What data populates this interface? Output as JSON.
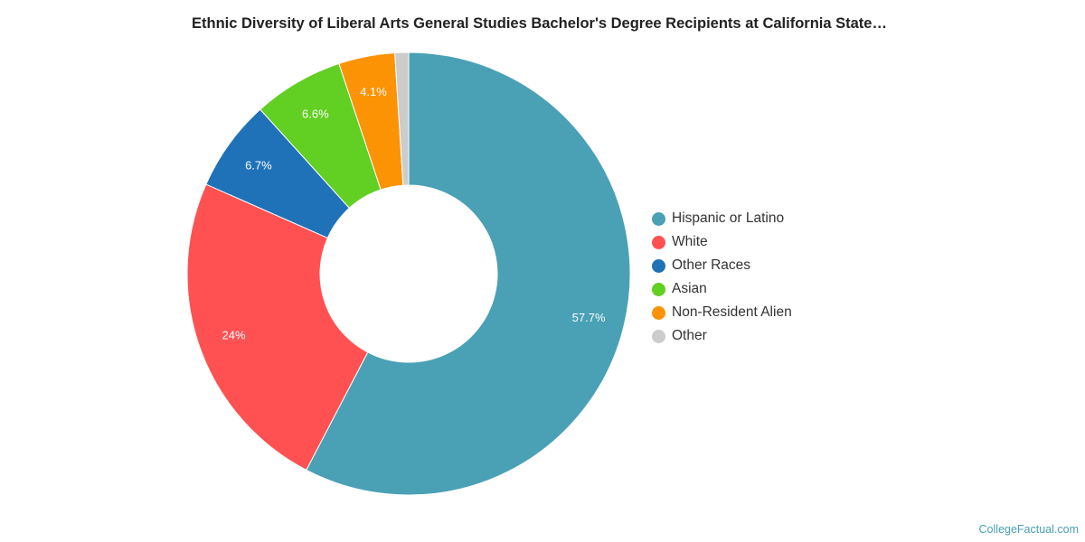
{
  "chart_data": {
    "type": "pie",
    "variant": "donut",
    "title": "Ethnic Diversity of Liberal Arts General Studies Bachelor's Degree Recipients at California State…",
    "categories": [
      "Hispanic or Latino",
      "White",
      "Other Races",
      "Asian",
      "Non-Resident Alien",
      "Other"
    ],
    "values": [
      57.7,
      24,
      6.7,
      6.6,
      4.1,
      1.0
    ],
    "data_labels": [
      "57.7%",
      "24%",
      "6.7%",
      "6.6%",
      "4.1%",
      ""
    ],
    "colors": [
      "#4aa0b4",
      "#ff5152",
      "#1f72b8",
      "#62cf23",
      "#fb9305",
      "#cccccc"
    ],
    "legend_position": "right",
    "start_angle_deg": 0,
    "direction": "clockwise"
  },
  "legend": {
    "items": [
      {
        "label": "Hispanic or Latino",
        "color": "#4aa0b4"
      },
      {
        "label": "White",
        "color": "#ff5152"
      },
      {
        "label": "Other Races",
        "color": "#1f72b8"
      },
      {
        "label": "Asian",
        "color": "#62cf23"
      },
      {
        "label": "Non-Resident Alien",
        "color": "#fb9305"
      },
      {
        "label": "Other",
        "color": "#cccccc"
      }
    ]
  },
  "source": {
    "credit": "CollegeFactual.com"
  }
}
